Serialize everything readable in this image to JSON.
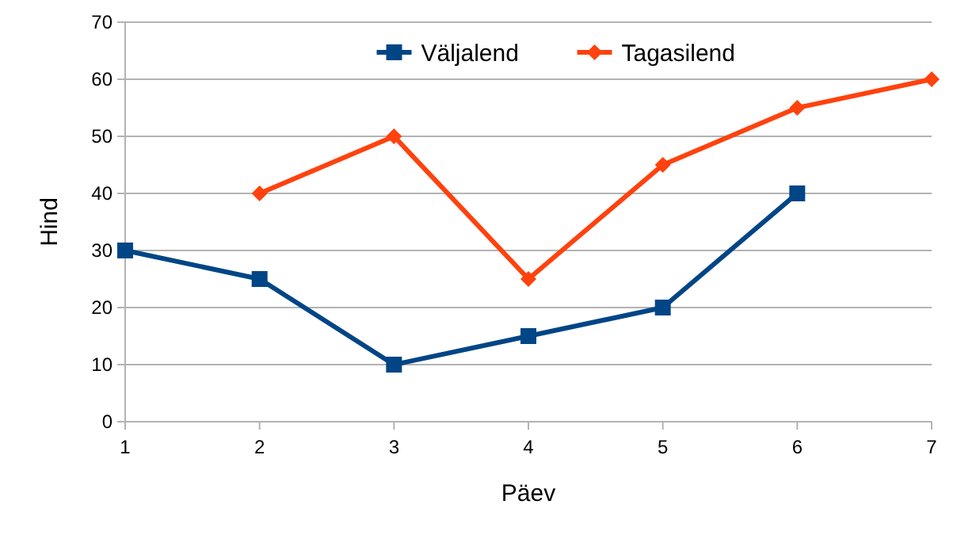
{
  "chart_data": {
    "type": "line",
    "xlabel": "Päev",
    "ylabel": "Hind",
    "xlim": [
      1,
      7
    ],
    "xticks": [
      1,
      2,
      3,
      4,
      5,
      6,
      7
    ],
    "ylim": [
      0,
      70
    ],
    "yticks": [
      0,
      10,
      20,
      30,
      40,
      50,
      60,
      70
    ],
    "grid": "y",
    "legend": "top",
    "line_style": "solid",
    "series": [
      {
        "name": "Väljalend",
        "color": "#004586",
        "marker": "square",
        "x": [
          1,
          2,
          3,
          4,
          5,
          6
        ],
        "values": [
          30,
          25,
          10,
          15,
          20,
          40
        ]
      },
      {
        "name": "Tagasilend",
        "color": "#ff420e",
        "marker": "diamond",
        "x": [
          2,
          3,
          4,
          5,
          6,
          7
        ],
        "values": [
          40,
          50,
          25,
          45,
          55,
          60
        ]
      }
    ]
  }
}
